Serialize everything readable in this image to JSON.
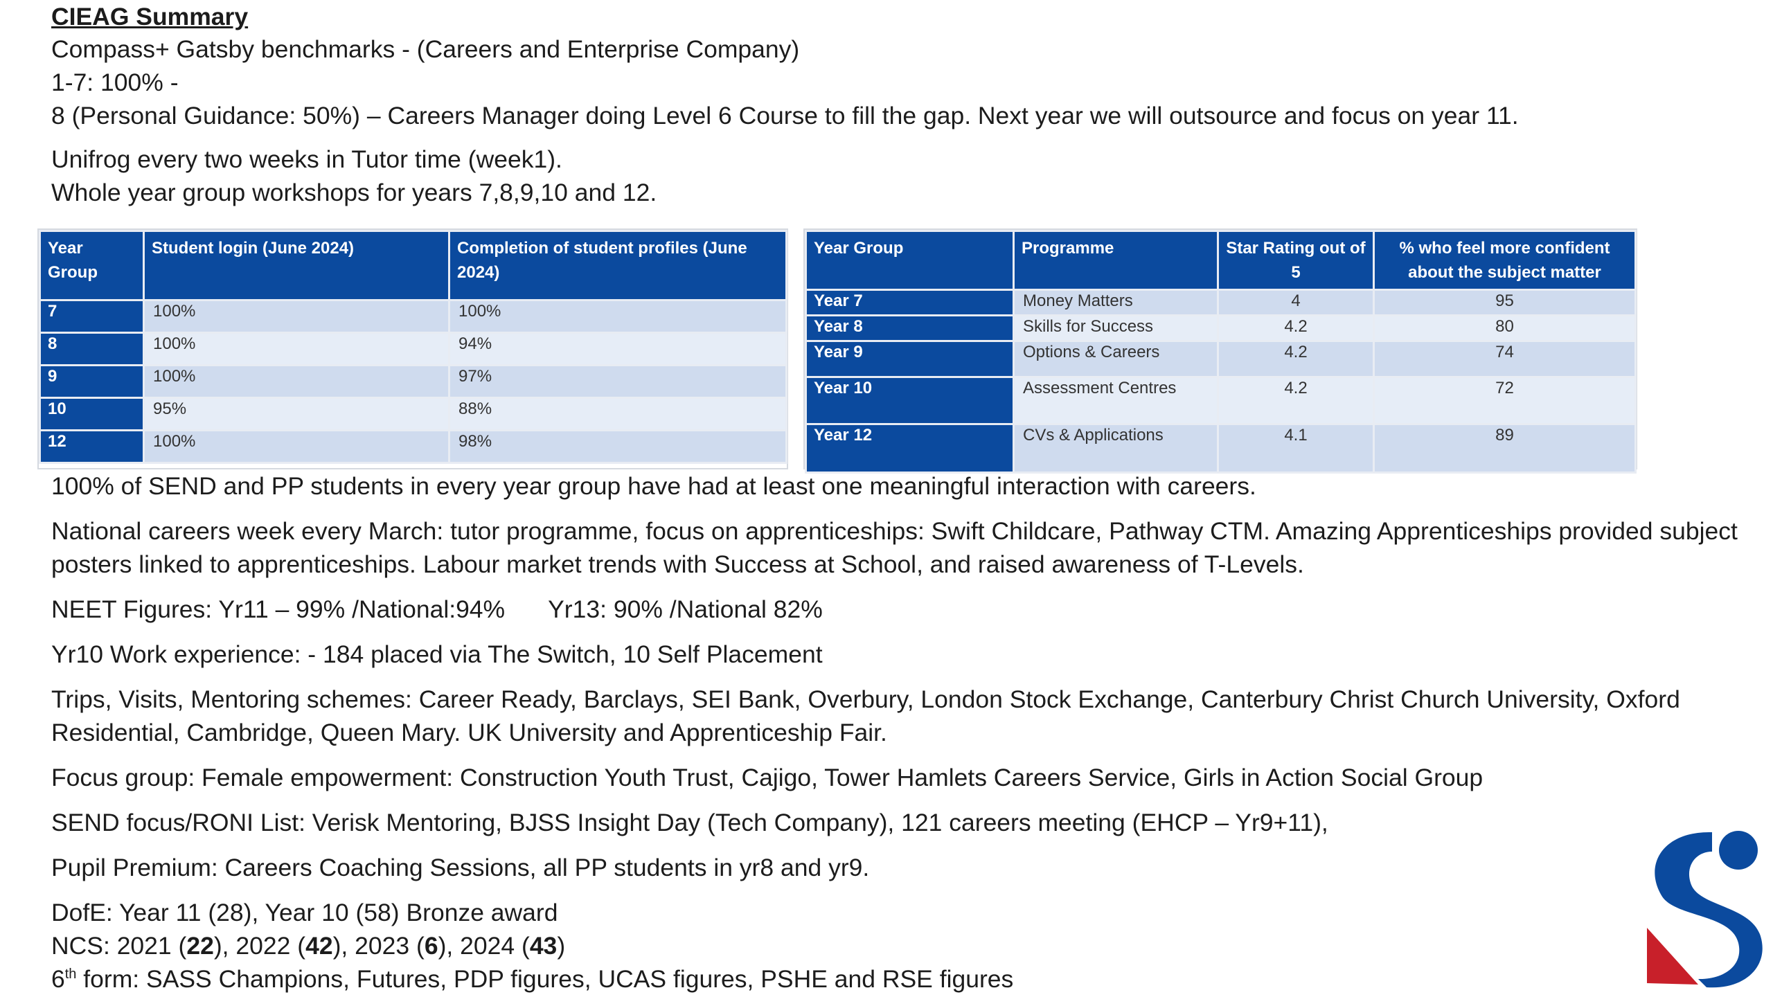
{
  "title": "CIEAG Summary",
  "lines": {
    "l1": "Compass+ Gatsby benchmarks - (Careers and Enterprise Company)",
    "l2": "1-7: 100% -",
    "l3": "8 (Personal Guidance: 50%) – Careers Manager doing Level 6 Course to fill the gap. Next year we will outsource and focus on year 11.",
    "l4": "Unifrog every two weeks in Tutor time (week1).",
    "l5": "Whole year group workshops for years 7,8,9,10 and 12.",
    "l6": "100% of SEND and PP students in every year group have had at least one meaningful interaction with careers.",
    "l7": "National careers week every March: tutor programme, focus on apprenticeships: Swift Childcare, Pathway CTM. Amazing Apprenticeships provided subject",
    "l8": "posters linked to apprenticeships. Labour market trends with Success at School, and raised awareness of T-Levels.",
    "l9a": "NEET Figures: Yr11 – 99% /National:94%",
    "l9b": "Yr13: 90% /National 82%",
    "l10": "Yr10 Work experience: - 184 placed via The Switch, 10 Self Placement",
    "l11": "Trips, Visits, Mentoring schemes: Career Ready, Barclays, SEI Bank, Overbury, London Stock Exchange, Canterbury Christ Church University, Oxford",
    "l12": "Residential, Cambridge, Queen Mary. UK University and Apprenticeship Fair.",
    "l13": "Focus group: Female empowerment: Construction Youth Trust, Cajigo, Tower Hamlets Careers Service, Girls in Action Social Group",
    "l14": "SEND focus/RONI List: Verisk Mentoring, BJSS Insight Day (Tech Company), 121 careers meeting (EHCP – Yr9+11),",
    "l15": "Pupil Premium: Careers Coaching Sessions, all PP students in yr8 and yr9.",
    "l16": "DofE: Year 11 (28), Year 10 (58) Bronze award"
  },
  "ncs": {
    "prefix": "NCS: ",
    "y1": "2021 (",
    "v1": "22",
    "s1": "), ",
    "y2": "2022 (",
    "v2": "42",
    "s2": "), ",
    "y3": "2023 (",
    "v3": "6",
    "s3": "), ",
    "y4": "2024 (",
    "v4": "43",
    "s4": ")"
  },
  "sixth": {
    "num": "6",
    "sup": "th",
    "rest": " form: SASS Champions, Futures, PDP figures, UCAS figures, PSHE and RSE figures"
  },
  "table1": {
    "headers": [
      "Year Group",
      "Student login (June 2024)",
      "Completion of student profiles (June 2024)"
    ],
    "rows": [
      [
        "7",
        "100%",
        "100%"
      ],
      [
        "8",
        "100%",
        "94%"
      ],
      [
        "9",
        "100%",
        "97%"
      ],
      [
        "10",
        "95%",
        "88%"
      ],
      [
        "12",
        "100%",
        "98%"
      ]
    ]
  },
  "table2": {
    "headers": [
      "Year Group",
      "Programme",
      "Star Rating out of 5",
      "% who feel more confident about the subject matter"
    ],
    "rows": [
      [
        "Year 7",
        "Money Matters",
        "4",
        "95"
      ],
      [
        "Year 8",
        "Skills for Success",
        "4.2",
        "80"
      ],
      [
        "Year 9",
        "Options & Careers",
        "4.2",
        "74"
      ],
      [
        "Year 10",
        "Assessment Centres",
        "4.2",
        "72"
      ],
      [
        "Year 12",
        "CVs & Applications",
        "4.1",
        "89"
      ]
    ]
  },
  "colors": {
    "table_header": "#0b4a9e",
    "logo_blue": "#0b4a9e",
    "logo_red": "#c8202a"
  }
}
